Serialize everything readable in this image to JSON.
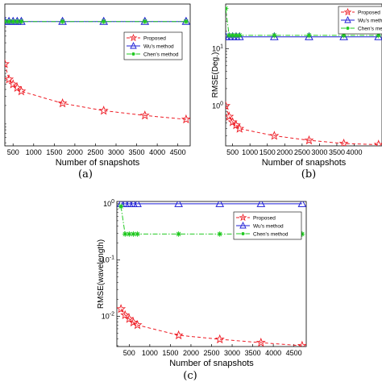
{
  "captions": [
    "(a)",
    "(b)",
    "(c)"
  ],
  "colors": {
    "proposed": "#ee1c25",
    "wu": "#1f1fd6",
    "chen": "#22c922",
    "axis": "#000000",
    "background": "#ffffff"
  },
  "chart_data": [
    {
      "type": "line",
      "xlabel": "Number of snapshots",
      "ylabel": "",
      "log_y": true,
      "xlim": [
        300,
        4800
      ],
      "ylim": [
        0.0035,
        1.6
      ],
      "xticks": [
        500,
        1000,
        1500,
        2000,
        2500,
        3000,
        3500,
        4000,
        4500
      ],
      "xtick_labels": [
        "500",
        "1000",
        "1500",
        "2000",
        "2500",
        "3000",
        "3500",
        "4000",
        "4500"
      ],
      "yticks": [],
      "ytick_labels": [],
      "legend": "top-right",
      "series": [
        {
          "name": "Proposed",
          "style": "dashed",
          "marker": "star",
          "x": [
            300,
            400,
            500,
            600,
            700,
            1700,
            2700,
            3700,
            4700
          ],
          "y": [
            0.12,
            0.062,
            0.05,
            0.043,
            0.037,
            0.022,
            0.016,
            0.013,
            0.011
          ]
        },
        {
          "name": "Wu's method",
          "style": "solid",
          "marker": "triangle",
          "x": [
            300,
            400,
            500,
            600,
            700,
            1700,
            2700,
            3700,
            4700
          ],
          "y": [
            0.75,
            0.75,
            0.75,
            0.75,
            0.75,
            0.75,
            0.75,
            0.75,
            0.75
          ]
        },
        {
          "name": "Chen's method",
          "style": "dashdot",
          "marker": "asterisk",
          "x": [
            300,
            400,
            500,
            600,
            700,
            1700,
            2700,
            3700,
            4700
          ],
          "y": [
            0.75,
            0.75,
            0.75,
            0.75,
            0.75,
            0.75,
            0.75,
            0.75,
            0.75
          ]
        }
      ]
    },
    {
      "type": "line",
      "xlabel": "Number of snapshots",
      "ylabel": "RMSE(Deg.)",
      "log_y": true,
      "xlim": [
        300,
        4800
      ],
      "ylim": [
        0.2,
        60
      ],
      "xticks": [
        500,
        1000,
        1500,
        2000,
        2500,
        3000,
        3500,
        4000
      ],
      "xtick_labels": [
        "500",
        "1000",
        "1500",
        "2000",
        "2500",
        "3000",
        "3500",
        "4000"
      ],
      "yticks": [
        1,
        10
      ],
      "ytick_labels": [
        "10^0",
        "10^1"
      ],
      "legend": "top-right",
      "series": [
        {
          "name": "Proposed",
          "style": "dashed",
          "marker": "star",
          "x": [
            300,
            400,
            500,
            600,
            700,
            1700,
            2700,
            3700,
            4700
          ],
          "y": [
            1.0,
            0.65,
            0.52,
            0.46,
            0.4,
            0.3,
            0.25,
            0.22,
            0.21
          ]
        },
        {
          "name": "Wu's method",
          "style": "solid",
          "marker": "triangle",
          "x": [
            300,
            400,
            500,
            600,
            700,
            1700,
            2700,
            3700,
            4700
          ],
          "y": [
            16,
            16,
            16,
            16,
            16,
            16,
            16,
            16,
            16
          ]
        },
        {
          "name": "Chen's method",
          "style": "dashdot",
          "marker": "asterisk",
          "x": [
            300,
            400,
            500,
            600,
            700,
            1700,
            2700,
            3700,
            4700
          ],
          "y": [
            50,
            17,
            17,
            17,
            17,
            17,
            17,
            17,
            17
          ]
        }
      ]
    },
    {
      "type": "line",
      "xlabel": "Number of snapshots",
      "ylabel": "RMSE(wavelength)",
      "log_y": true,
      "xlim": [
        200,
        4800
      ],
      "ylim": [
        0.0029,
        1.1
      ],
      "xticks": [
        500,
        1000,
        1500,
        2000,
        2500,
        3000,
        3500,
        4000,
        4500
      ],
      "xtick_labels": [
        "500",
        "1000",
        "1500",
        "2000",
        "2500",
        "3000",
        "3500",
        "4000",
        "4500"
      ],
      "yticks": [
        0.01,
        0.1,
        1
      ],
      "ytick_labels": [
        "10^-2",
        "10^-1",
        "10^0"
      ],
      "legend": "top-right",
      "series": [
        {
          "name": "Proposed",
          "style": "dashed",
          "marker": "star",
          "x": [
            300,
            400,
            500,
            600,
            700,
            1700,
            2700,
            3700,
            4700
          ],
          "y": [
            0.0135,
            0.0105,
            0.009,
            0.0078,
            0.007,
            0.0046,
            0.0039,
            0.0034,
            0.003
          ]
        },
        {
          "name": "Wu's method",
          "style": "solid",
          "marker": "triangle",
          "x": [
            300,
            400,
            500,
            600,
            700,
            1700,
            2700,
            3700,
            4700
          ],
          "y": [
            1.0,
            1.0,
            1.0,
            1.0,
            1.0,
            1.0,
            1.0,
            1.0,
            1.0
          ]
        },
        {
          "name": "Chen's method",
          "style": "dashdot",
          "marker": "asterisk",
          "x": [
            300,
            400,
            500,
            600,
            700,
            1700,
            2700,
            3700,
            4700
          ],
          "y": [
            0.9,
            0.29,
            0.29,
            0.29,
            0.29,
            0.29,
            0.29,
            0.29,
            0.29
          ]
        }
      ]
    }
  ]
}
